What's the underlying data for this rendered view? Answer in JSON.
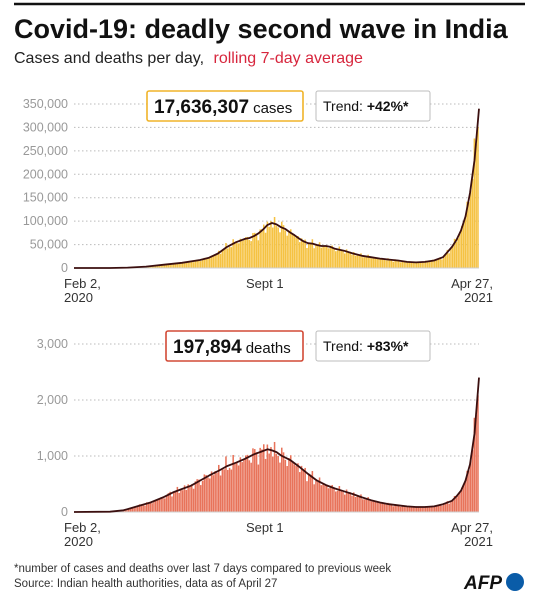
{
  "header": {
    "title": "Covid-19: deadly second wave in India",
    "subtitle_main": "Cases and deaths per day,",
    "subtitle_accent": "rolling 7-day average"
  },
  "footer": {
    "note": "*number of cases and deaths over last 7 days compared to previous week",
    "source": "Source: Indian health authorities, data as of April 27",
    "logo_text": "AFP"
  },
  "colors": {
    "title_rule": "#111111",
    "subtitle_accent": "#d7263d",
    "cases_fill": "#f5c242",
    "cases_box_border": "#f0b429",
    "deaths_fill": "#e8735a",
    "deaths_box_border": "#d24a36",
    "average_line": "#3b0f0f",
    "grid": "#bbbbbb",
    "axis_text": "#999999",
    "logo_blue": "#0a5ca8"
  },
  "chart_data": [
    {
      "type": "area",
      "name": "cases",
      "highlight": {
        "value": "17,636,307",
        "unit": "cases"
      },
      "trend": {
        "label": "Trend: ",
        "value": "+42%*"
      },
      "yticks": [
        "0",
        "50,000",
        "100,000",
        "150,000",
        "200,000",
        "250,000",
        "300,000",
        "350,000"
      ],
      "ylim": [
        0,
        350000
      ],
      "grid": true,
      "xticks": [
        {
          "label": "Feb 2,",
          "sub": "2020",
          "day": 0
        },
        {
          "label": "Sept 1",
          "sub": "",
          "day": 212
        },
        {
          "label": "Apr 27,",
          "sub": "2021",
          "day": 450
        }
      ],
      "series": [
        {
          "values": [
            [
              0,
              0
            ],
            [
              40,
              100
            ],
            [
              60,
              800
            ],
            [
              80,
              3000
            ],
            [
              100,
              7000
            ],
            [
              120,
              11000
            ],
            [
              140,
              17000
            ],
            [
              150,
              22000
            ],
            [
              160,
              31000
            ],
            [
              170,
              45000
            ],
            [
              180,
              55000
            ],
            [
              190,
              62000
            ],
            [
              195,
              64000
            ],
            [
              200,
              68000
            ],
            [
              205,
              74000
            ],
            [
              210,
              82000
            ],
            [
              215,
              92000
            ],
            [
              220,
              96000
            ],
            [
              225,
              93000
            ],
            [
              230,
              87000
            ],
            [
              235,
              83000
            ],
            [
              240,
              76000
            ],
            [
              245,
              70000
            ],
            [
              250,
              63000
            ],
            [
              255,
              57000
            ],
            [
              260,
              53000
            ],
            [
              265,
              52000
            ],
            [
              270,
              49000
            ],
            [
              275,
              47000
            ],
            [
              280,
              47000
            ],
            [
              285,
              45000
            ],
            [
              290,
              41000
            ],
            [
              300,
              37000
            ],
            [
              310,
              31000
            ],
            [
              320,
              26000
            ],
            [
              330,
              23000
            ],
            [
              340,
              20000
            ],
            [
              350,
              18000
            ],
            [
              360,
              16000
            ],
            [
              370,
              13000
            ],
            [
              380,
              12000
            ],
            [
              390,
              13000
            ],
            [
              400,
              16000
            ],
            [
              410,
              23000
            ],
            [
              420,
              45000
            ],
            [
              425,
              60000
            ],
            [
              430,
              80000
            ],
            [
              435,
              110000
            ],
            [
              440,
              160000
            ],
            [
              445,
              230000
            ],
            [
              450,
              340000
            ]
          ]
        }
      ]
    },
    {
      "type": "area",
      "name": "deaths",
      "highlight": {
        "value": "197,894",
        "unit": "deaths"
      },
      "trend": {
        "label": "Trend: ",
        "value": "+83%*"
      },
      "yticks": [
        "0",
        "1,000",
        "2,000",
        "3,000"
      ],
      "ylim": [
        0,
        3000
      ],
      "grid": true,
      "xticks": [
        {
          "label": "Feb 2,",
          "sub": "2020",
          "day": 0
        },
        {
          "label": "Sept 1",
          "sub": "",
          "day": 212
        },
        {
          "label": "Apr 27,",
          "sub": "2021",
          "day": 450
        }
      ],
      "series": [
        {
          "values": [
            [
              0,
              0
            ],
            [
              40,
              5
            ],
            [
              55,
              30
            ],
            [
              70,
              100
            ],
            [
              85,
              170
            ],
            [
              100,
              270
            ],
            [
              110,
              350
            ],
            [
              120,
              410
            ],
            [
              130,
              470
            ],
            [
              140,
              560
            ],
            [
              150,
              650
            ],
            [
              160,
              730
            ],
            [
              170,
              820
            ],
            [
              180,
              880
            ],
            [
              190,
              950
            ],
            [
              200,
              1030
            ],
            [
              210,
              1090
            ],
            [
              215,
              1120
            ],
            [
              220,
              1100
            ],
            [
              225,
              1070
            ],
            [
              230,
              1010
            ],
            [
              240,
              930
            ],
            [
              250,
              810
            ],
            [
              260,
              680
            ],
            [
              270,
              560
            ],
            [
              280,
              480
            ],
            [
              290,
              420
            ],
            [
              300,
              370
            ],
            [
              310,
              320
            ],
            [
              320,
              260
            ],
            [
              330,
              210
            ],
            [
              340,
              170
            ],
            [
              350,
              140
            ],
            [
              360,
              120
            ],
            [
              370,
              100
            ],
            [
              380,
              90
            ],
            [
              390,
              90
            ],
            [
              400,
              100
            ],
            [
              410,
              140
            ],
            [
              420,
              200
            ],
            [
              425,
              280
            ],
            [
              430,
              380
            ],
            [
              435,
              560
            ],
            [
              440,
              850
            ],
            [
              445,
              1400
            ],
            [
              450,
              2400
            ]
          ]
        }
      ]
    }
  ]
}
